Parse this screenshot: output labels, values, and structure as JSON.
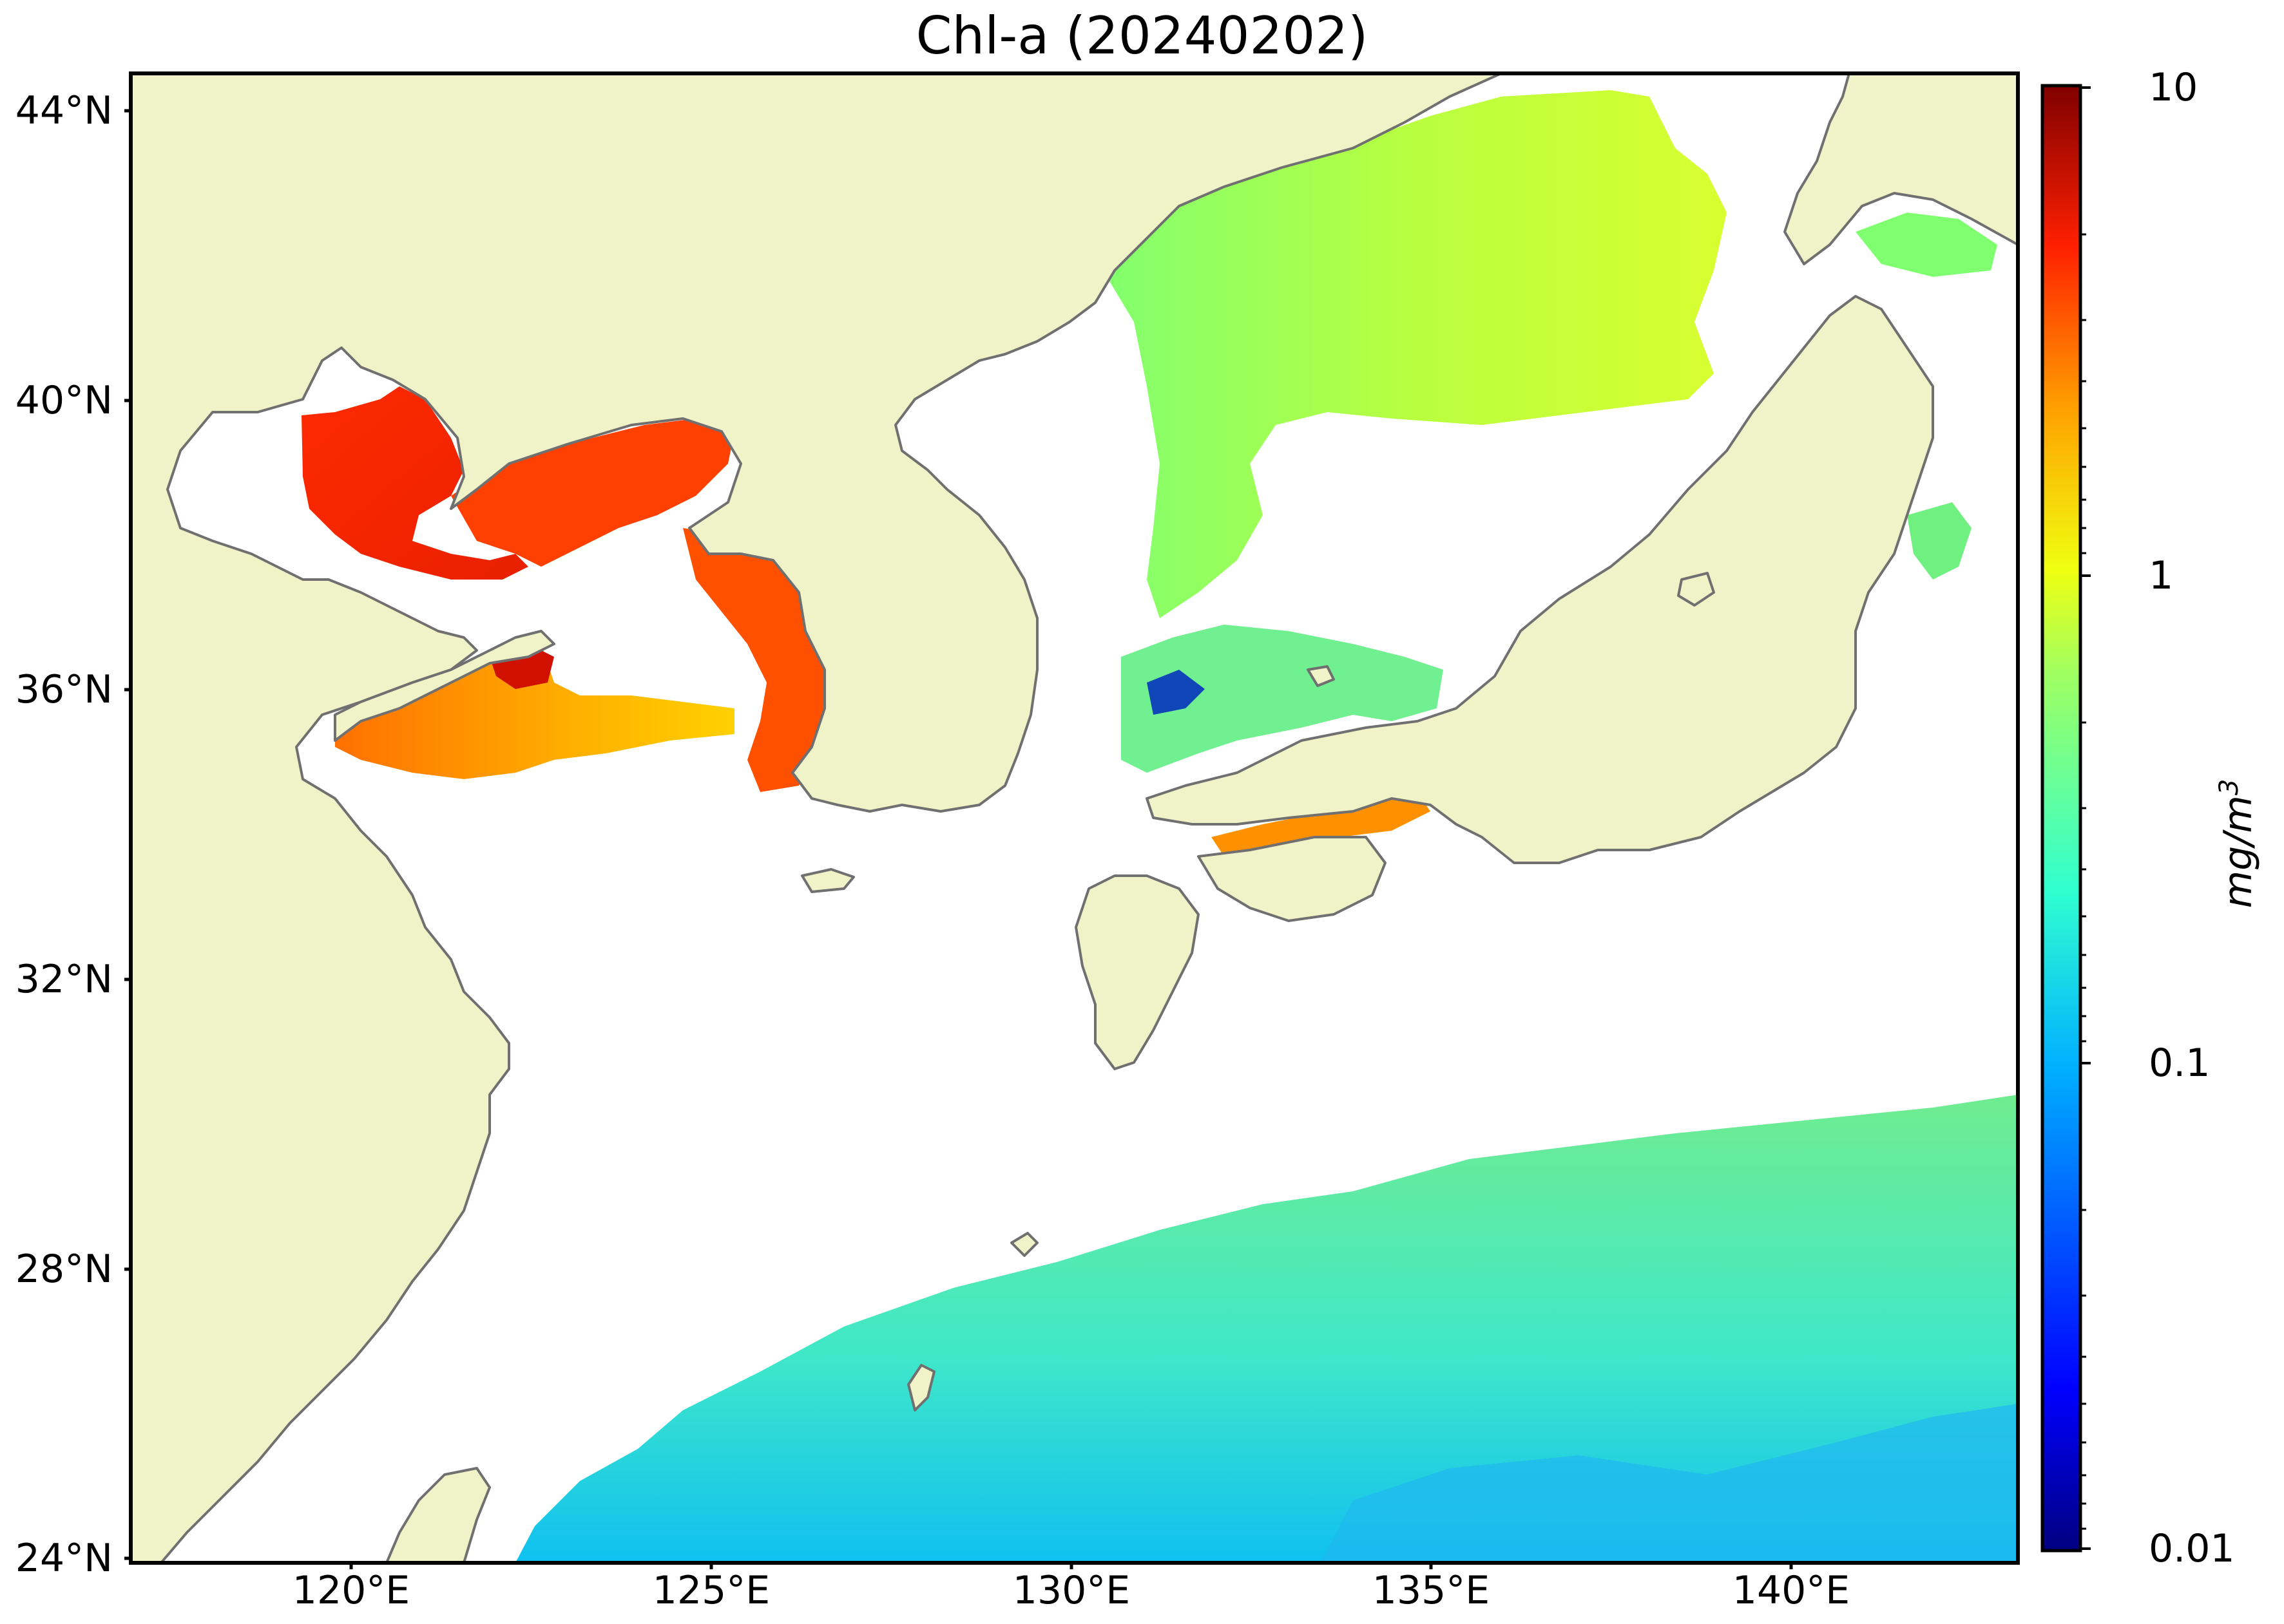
{
  "title": "Chl-a (20240202)",
  "map": {
    "variable": "Chl-a",
    "date": "20240202",
    "extent": {
      "lon": [
        116.9,
        143.1
      ],
      "lat": [
        24.0,
        44.6
      ]
    },
    "land_color": "#f0f2c8",
    "ocean_nodata_color": "#ffffff",
    "coastline_color": "#707070",
    "lat_ticks": [
      "44°N",
      "40°N",
      "36°N",
      "32°N",
      "28°N",
      "24°N"
    ],
    "lon_ticks": [
      "120°E",
      "125°E",
      "130°E",
      "135°E",
      "140°E"
    ]
  },
  "colorbar": {
    "colormap": "jet",
    "scale": "log",
    "range": [
      0.01,
      10
    ],
    "ticks": [
      "10",
      "1",
      "0.1",
      "0.01"
    ],
    "label": "mg/m",
    "label_sup": "3",
    "colors": [
      "#000080",
      "#0000ff",
      "#00a0ff",
      "#20ffe0",
      "#a0ff60",
      "#ffe000",
      "#ff6000",
      "#ff0000",
      "#800000"
    ]
  }
}
